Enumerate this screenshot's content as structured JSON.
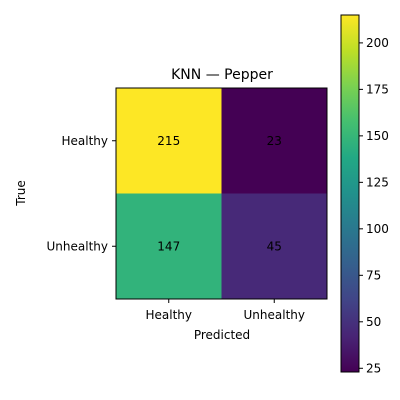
{
  "chart_data": {
    "type": "heatmap",
    "title": "KNN — Pepper",
    "xlabel": "Predicted",
    "ylabel": "True",
    "x_categories": [
      "Healthy",
      "Unhealthy"
    ],
    "y_categories": [
      "Healthy",
      "Unhealthy"
    ],
    "values": [
      [
        215,
        23
      ],
      [
        147,
        45
      ]
    ],
    "colormap": "viridis",
    "colorbar": {
      "range": [
        23,
        215
      ],
      "ticks": [
        25,
        50,
        75,
        100,
        125,
        150,
        175,
        200
      ]
    }
  }
}
